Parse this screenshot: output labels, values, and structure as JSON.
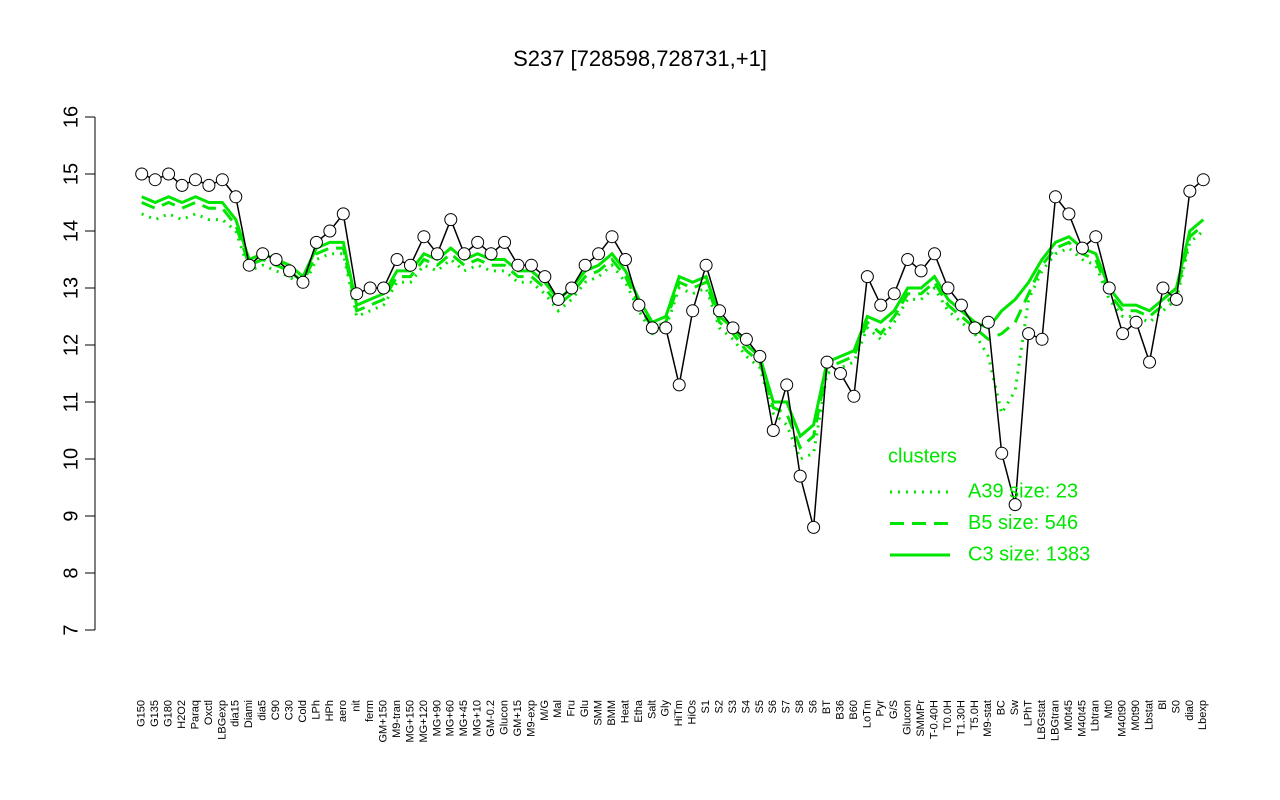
{
  "chart_data": {
    "type": "line",
    "title": "S237 [728598,728731,+1]",
    "categories": [
      "G150",
      "G135",
      "G180",
      "H2O2",
      "Paraq",
      "Oxctl",
      "LBGexp",
      "dia15",
      "Diami",
      "dia5",
      "C90",
      "C30",
      "Cold",
      "LPh",
      "HPh",
      "aero",
      "nit",
      "ferm",
      "GM+150",
      "M9-tran",
      "MG+150",
      "MG+120",
      "MG+90",
      "MG+60",
      "MG+45",
      "MG+10",
      "GM-0.2",
      "Glucon",
      "GM+15",
      "M9-exp",
      "M/G",
      "Mal",
      "Fru",
      "Glu",
      "SMM",
      "BMM",
      "Heat",
      "Etha",
      "Salt",
      "Gly",
      "HiTm",
      "HiOs",
      "S1",
      "S2",
      "S3",
      "S4",
      "S5",
      "S6",
      "S7",
      "S8",
      "S6",
      "BT",
      "B36",
      "B60",
      "LoTm",
      "Pyr",
      "G/S",
      "Glucon",
      "SMMPr",
      "T-0.40H",
      "T0.0H",
      "T1.30H",
      "T5.0H",
      "M9-stat",
      "BC",
      "Sw",
      "LPhT",
      "LBGstat",
      "LBGtran",
      "M0t45",
      "M40t45",
      "Lbtran",
      "Mt0",
      "M40t90",
      "M0t90",
      "Lbstat",
      "Bl",
      "S0",
      "dia0",
      "Lbexp"
    ],
    "values": [
      15.0,
      14.9,
      15.0,
      14.8,
      14.9,
      14.8,
      14.9,
      14.6,
      13.4,
      13.6,
      13.5,
      13.3,
      13.1,
      13.8,
      14.0,
      14.3,
      12.9,
      13.0,
      13.0,
      13.5,
      13.4,
      13.9,
      13.6,
      14.2,
      13.6,
      13.8,
      13.6,
      13.8,
      13.4,
      13.4,
      13.2,
      12.8,
      13.0,
      13.4,
      13.6,
      13.9,
      13.5,
      12.7,
      12.3,
      12.3,
      11.3,
      12.6,
      13.4,
      12.6,
      12.3,
      12.1,
      11.8,
      10.5,
      11.3,
      9.7,
      8.8,
      11.7,
      11.5,
      11.1,
      13.2,
      12.7,
      12.9,
      13.5,
      13.3,
      13.6,
      13.0,
      12.7,
      12.3,
      12.4,
      10.1,
      9.2,
      12.2,
      12.1,
      14.6,
      14.3,
      13.7,
      13.9,
      13.0,
      12.2,
      12.4,
      11.7,
      13.0,
      12.8,
      14.7,
      14.9
    ],
    "color": "#000000",
    "point_fill": "#ffffff",
    "legend_title": "clusters",
    "series": [
      {
        "name": "A39 size: 23",
        "color": "#00e600",
        "dash": "dotted",
        "values": [
          14.3,
          14.2,
          14.3,
          14.2,
          14.3,
          14.2,
          14.2,
          14.0,
          13.3,
          13.4,
          13.3,
          13.2,
          13.0,
          13.5,
          13.6,
          13.6,
          12.5,
          12.6,
          12.7,
          13.1,
          13.1,
          13.4,
          13.3,
          13.5,
          13.3,
          13.4,
          13.3,
          13.3,
          13.1,
          13.1,
          12.9,
          12.6,
          12.8,
          13.1,
          13.2,
          13.4,
          13.1,
          12.6,
          12.2,
          12.3,
          13.0,
          12.9,
          13.0,
          12.3,
          12.1,
          11.8,
          11.6,
          10.8,
          10.6,
          10.0,
          10.1,
          11.5,
          11.6,
          11.7,
          12.3,
          12.1,
          12.4,
          12.8,
          12.8,
          13.0,
          12.6,
          12.4,
          12.2,
          11.8,
          10.8,
          11.2,
          12.8,
          13.3,
          13.6,
          13.7,
          13.5,
          13.4,
          12.8,
          12.5,
          12.5,
          12.4,
          12.6,
          12.8,
          13.8,
          14.0
        ]
      },
      {
        "name": "B5 size: 546",
        "color": "#00e600",
        "dash": "dashed",
        "values": [
          14.5,
          14.4,
          14.5,
          14.4,
          14.5,
          14.4,
          14.4,
          14.1,
          13.4,
          13.5,
          13.4,
          13.3,
          13.1,
          13.6,
          13.7,
          13.7,
          12.6,
          12.7,
          12.8,
          13.2,
          13.2,
          13.5,
          13.4,
          13.6,
          13.4,
          13.5,
          13.4,
          13.4,
          13.2,
          13.2,
          13.0,
          12.7,
          12.9,
          13.2,
          13.3,
          13.5,
          13.2,
          12.7,
          12.3,
          12.4,
          13.1,
          13.0,
          13.1,
          12.4,
          12.2,
          11.9,
          11.7,
          10.9,
          10.8,
          10.2,
          10.4,
          11.6,
          11.7,
          11.8,
          12.4,
          12.2,
          12.5,
          12.9,
          12.9,
          13.1,
          12.7,
          12.5,
          12.3,
          12.1,
          12.2,
          12.4,
          12.9,
          13.4,
          13.7,
          13.8,
          13.6,
          13.5,
          12.9,
          12.6,
          12.6,
          12.5,
          12.7,
          12.9,
          13.9,
          14.1
        ]
      },
      {
        "name": "C3 size: 1383",
        "color": "#00e600",
        "dash": "solid",
        "values": [
          14.6,
          14.5,
          14.6,
          14.5,
          14.6,
          14.5,
          14.5,
          14.2,
          13.5,
          13.6,
          13.5,
          13.4,
          13.2,
          13.7,
          13.8,
          13.8,
          12.7,
          12.8,
          12.9,
          13.3,
          13.3,
          13.6,
          13.5,
          13.7,
          13.5,
          13.6,
          13.5,
          13.5,
          13.3,
          13.3,
          13.1,
          12.8,
          13.0,
          13.3,
          13.4,
          13.6,
          13.3,
          12.8,
          12.4,
          12.5,
          13.2,
          13.1,
          13.2,
          12.5,
          12.3,
          12.0,
          11.8,
          11.0,
          11.0,
          10.4,
          10.6,
          11.7,
          11.8,
          11.9,
          12.5,
          12.4,
          12.6,
          13.0,
          13.0,
          13.2,
          12.8,
          12.6,
          12.4,
          12.3,
          12.6,
          12.8,
          13.1,
          13.5,
          13.8,
          13.9,
          13.7,
          13.6,
          13.0,
          12.7,
          12.7,
          12.6,
          12.8,
          13.0,
          14.0,
          14.2
        ]
      }
    ],
    "ylim": [
      7,
      16
    ],
    "yticks": [
      7,
      8,
      9,
      10,
      11,
      12,
      13,
      14,
      15,
      16
    ]
  }
}
